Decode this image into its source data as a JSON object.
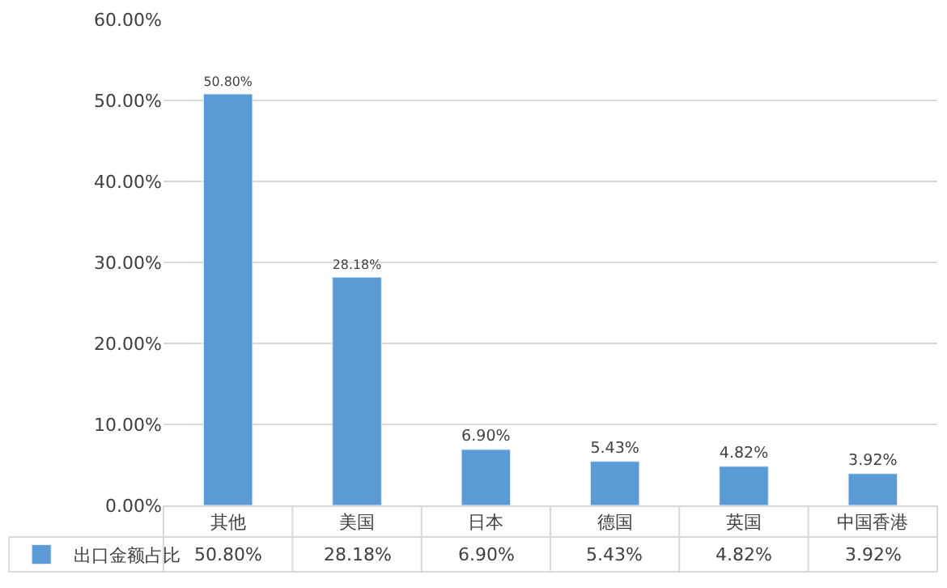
{
  "chart_data": {
    "type": "bar",
    "categories": [
      "其他",
      "美国",
      "日本",
      "德国",
      "英国",
      "中国香港"
    ],
    "series": [
      {
        "name": "出口金额占比",
        "color": "#5b9bd5",
        "values": [
          50.8,
          28.18,
          6.9,
          5.43,
          4.82,
          3.92
        ],
        "value_labels": [
          "50.80%",
          "28.18%",
          "6.90%",
          "5.43%",
          "4.82%",
          "3.92%"
        ]
      }
    ],
    "ylim": [
      0,
      60
    ],
    "yticks": [
      {
        "value": 0,
        "label": "0.00%"
      },
      {
        "value": 10,
        "label": "10.00%"
      },
      {
        "value": 20,
        "label": "20.00%"
      },
      {
        "value": 30,
        "label": "30.00%"
      },
      {
        "value": 40,
        "label": "40.00%"
      },
      {
        "value": 50,
        "label": "50.00%"
      },
      {
        "value": 60,
        "label": "60.00%"
      }
    ],
    "grid": "y",
    "legend": "bottom left"
  }
}
